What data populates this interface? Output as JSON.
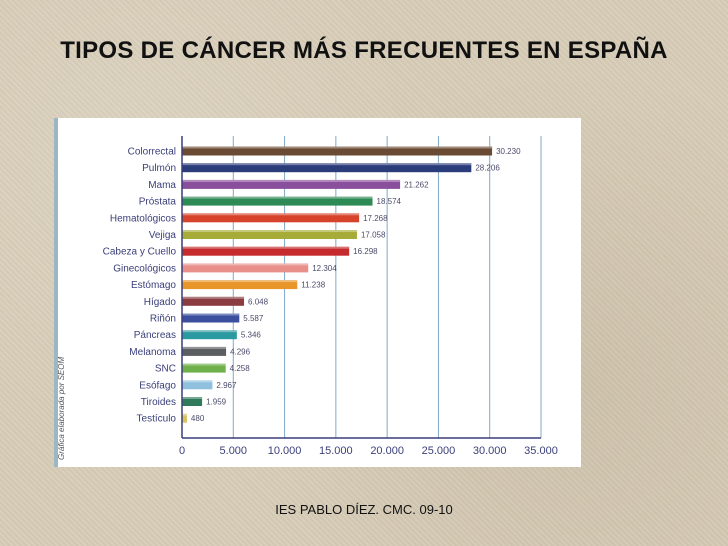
{
  "slide": {
    "title": "TIPOS DE CÁNCER MÁS FRECUENTES EN ESPAÑA",
    "credit": "Gráfica elaborada por SEOM",
    "footer": "IES PABLO DÍEZ. CMC. 09-10"
  },
  "chart_data": {
    "type": "bar",
    "orientation": "horizontal",
    "title": "",
    "xlabel": "",
    "ylabel": "",
    "xlim": [
      0,
      35000
    ],
    "grid": true,
    "categories": [
      "Colorrectal",
      "Pulmón",
      "Mama",
      "Próstata",
      "Hematológicos",
      "Vejiga",
      "Cabeza y Cuello",
      "Ginecológicos",
      "Estómago",
      "Hígado",
      "Riñón",
      "Páncreas",
      "Melanoma",
      "SNC",
      "Esófago",
      "Tiroides",
      "Testículo"
    ],
    "values": [
      30230,
      28206,
      21262,
      18574,
      17268,
      17058,
      16298,
      12304,
      11238,
      6048,
      5587,
      5346,
      4296,
      4258,
      2967,
      1959,
      480
    ],
    "value_labels": [
      "30.230",
      "28.206",
      "21.262",
      "18.574",
      "17.268",
      "17.058",
      "16.298",
      "12.304",
      "11.238",
      "6.048",
      "5.587",
      "5.346",
      "4.296",
      "4.258",
      "2.967",
      "1.959",
      "480"
    ],
    "ticks": [
      0,
      5000,
      10000,
      15000,
      20000,
      25000,
      30000,
      35000
    ],
    "tick_labels": [
      "0",
      "5.000",
      "10.000",
      "15.000",
      "20.000",
      "25.000",
      "30.000",
      "35.000"
    ],
    "bar_colors": [
      "#6b4a34",
      "#2b3c7a",
      "#8a4f9c",
      "#2e8a55",
      "#d6432a",
      "#a6ac37",
      "#c52a2c",
      "#e88f8a",
      "#e8952a",
      "#8a3c40",
      "#3b4f9e",
      "#2b9aa0",
      "#5c5f62",
      "#6fb04a",
      "#8fc1de",
      "#2f7a5a",
      "#d8c45a"
    ],
    "colors": {
      "axis": "#3a3f7a",
      "grid": "#7fa9c8"
    }
  }
}
